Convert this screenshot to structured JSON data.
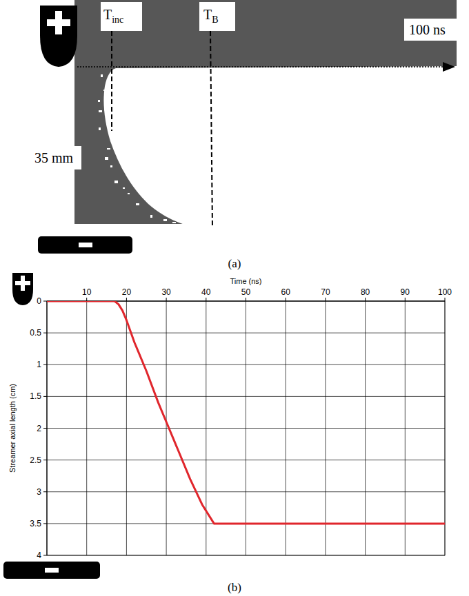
{
  "panel_a": {
    "label": "(a)",
    "t_inc": {
      "text": "T",
      "subscript": "inc"
    },
    "t_b": {
      "text": "T",
      "subscript": "B"
    },
    "time_span": "100 ns",
    "gap": "35 mm"
  },
  "chart_data": {
    "type": "line",
    "label": "(b)",
    "xlabel": "Time (ns)",
    "ylabel": "Streamer axial length (cm)",
    "x": [
      0,
      10,
      17,
      18,
      19,
      20,
      22,
      25,
      28,
      30,
      33,
      36,
      39,
      42,
      50,
      60,
      70,
      80,
      90,
      100
    ],
    "values": [
      0,
      0,
      0,
      0.05,
      0.15,
      0.3,
      0.65,
      1.1,
      1.6,
      1.9,
      2.35,
      2.8,
      3.2,
      3.5,
      3.5,
      3.5,
      3.5,
      3.5,
      3.5,
      3.5
    ],
    "color": "#e0262c",
    "xlim": [
      0,
      100
    ],
    "xticks": [
      10,
      20,
      30,
      40,
      50,
      60,
      70,
      80,
      90,
      100
    ],
    "ylim": [
      4,
      0
    ],
    "yticks": [
      0,
      0.5,
      1,
      1.5,
      2,
      2.5,
      3,
      3.5,
      4
    ],
    "grid": true
  }
}
